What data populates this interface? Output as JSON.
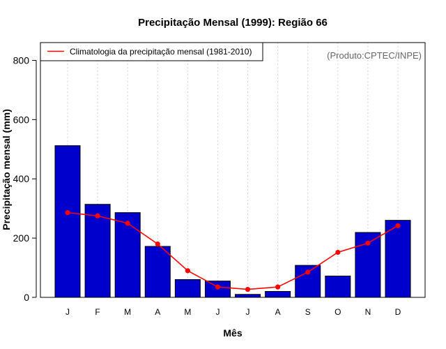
{
  "chart_data": {
    "type": "bar",
    "title": "Precipitação Mensal (1999): Região 66",
    "xlabel": "Mês",
    "ylabel": "Precipitação mensal (mm)",
    "ylim": [
      0,
      860
    ],
    "yticks": [
      0,
      200,
      400,
      600,
      800
    ],
    "categories": [
      "J",
      "F",
      "M",
      "A",
      "M",
      "J",
      "J",
      "A",
      "S",
      "O",
      "N",
      "D"
    ],
    "series": [
      {
        "name": "Precipitação mensal 1999",
        "type": "bar",
        "color": "#0000CC",
        "values": [
          512,
          314,
          286,
          172,
          60,
          55,
          10,
          20,
          108,
          72,
          219,
          260
        ]
      },
      {
        "name": "Climatologia da precipitação mensal (1981-2010)",
        "type": "line",
        "color": "#FF0000",
        "values": [
          286,
          275,
          250,
          180,
          90,
          35,
          27,
          35,
          85,
          152,
          183,
          242
        ]
      }
    ],
    "legend": {
      "position": "top-left",
      "entries": [
        "Climatologia da precipitação mensal (1981-2010)"
      ]
    },
    "credit": "(Produto:CPTEC/INPE)",
    "grid": "vertical dotted"
  }
}
